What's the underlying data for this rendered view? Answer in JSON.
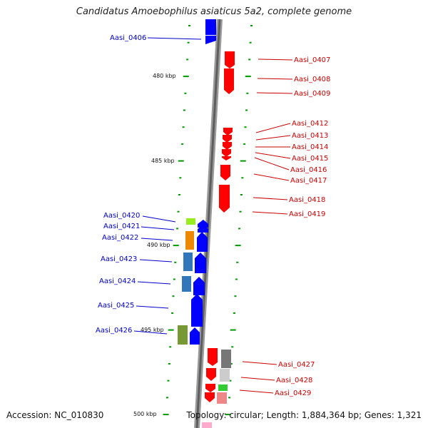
{
  "title": "Candidatus Amoebophilus asiaticus 5a2, complete genome",
  "footer": {
    "accession": "Accession: NC_010830",
    "summary": "Topology: circular; Length: 1,884,364 bp; Genes: 1,321"
  },
  "ruler": [
    "480 kbp",
    "485 kbp",
    "490 kbp",
    "495 kbp",
    "500 kbp"
  ],
  "genes_forward": [
    "Aasi_0406",
    "Aasi_0420",
    "Aasi_0421",
    "Aasi_0422",
    "Aasi_0423",
    "Aasi_0424",
    "Aasi_0425",
    "Aasi_0426"
  ],
  "genes_reverse": [
    "Aasi_0407",
    "Aasi_0408",
    "Aasi_0409",
    "Aasi_0412",
    "Aasi_0413",
    "Aasi_0414",
    "Aasi_0415",
    "Aasi_0416",
    "Aasi_0417",
    "Aasi_0418",
    "Aasi_0419",
    "Aasi_0427",
    "Aasi_0428",
    "Aasi_0429"
  ],
  "colors": {
    "forward_label": "#0000cc",
    "reverse_label": "#cc0000",
    "forward_cds": "#0000ff",
    "reverse_cds": "#ff0000",
    "backbone": "#777777",
    "tick": "#009900"
  }
}
